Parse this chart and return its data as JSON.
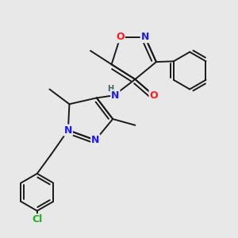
{
  "bg_color": "#e8e8e8",
  "bond_color": "#1a1a1a",
  "bond_width": 1.4,
  "atom_colors": {
    "C": "#1a1a1a",
    "N": "#1a1aff",
    "O": "#ff1a1a",
    "H": "#406060",
    "Cl": "#1ab31a"
  },
  "font_size": 8.0
}
